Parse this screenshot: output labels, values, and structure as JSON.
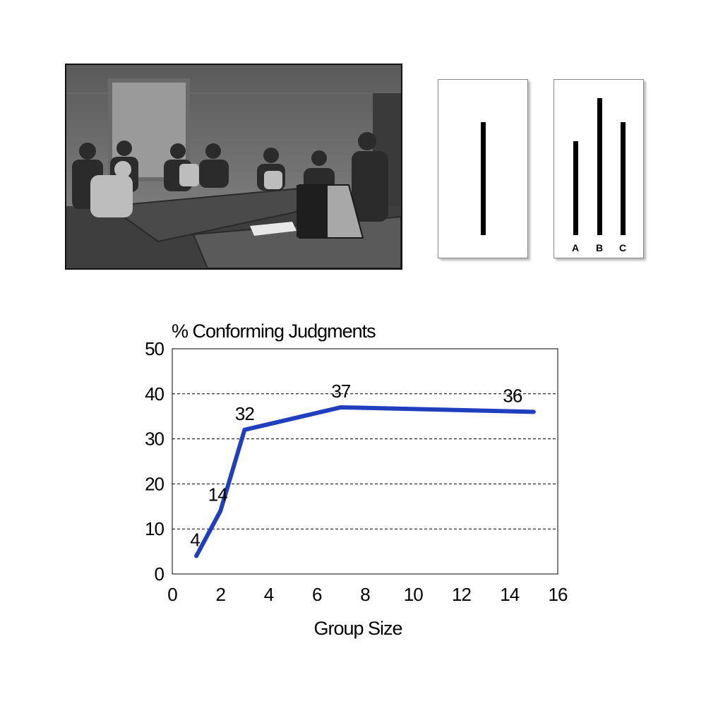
{
  "cards": {
    "standard_line": 1,
    "comparison": [
      {
        "label": "A"
      },
      {
        "label": "B"
      },
      {
        "label": "C"
      }
    ]
  },
  "chart_data": {
    "type": "line",
    "title": "% Conforming Judgments",
    "xlabel": "Group Size",
    "ylabel": "",
    "x": [
      1,
      2,
      3,
      7,
      15
    ],
    "series": [
      {
        "values": [
          4,
          14,
          32,
          37,
          36
        ],
        "data_labels": [
          "4",
          "14",
          "32",
          "37",
          "36"
        ],
        "color": "#1f3fbf"
      }
    ],
    "xlim": [
      0,
      16
    ],
    "ylim": [
      0,
      50
    ],
    "xticks": [
      0,
      2,
      4,
      6,
      8,
      10,
      12,
      14,
      16
    ],
    "yticks": [
      0,
      10,
      20,
      30,
      40,
      50
    ],
    "grid": "horizontal-dashed",
    "legend": "none"
  }
}
